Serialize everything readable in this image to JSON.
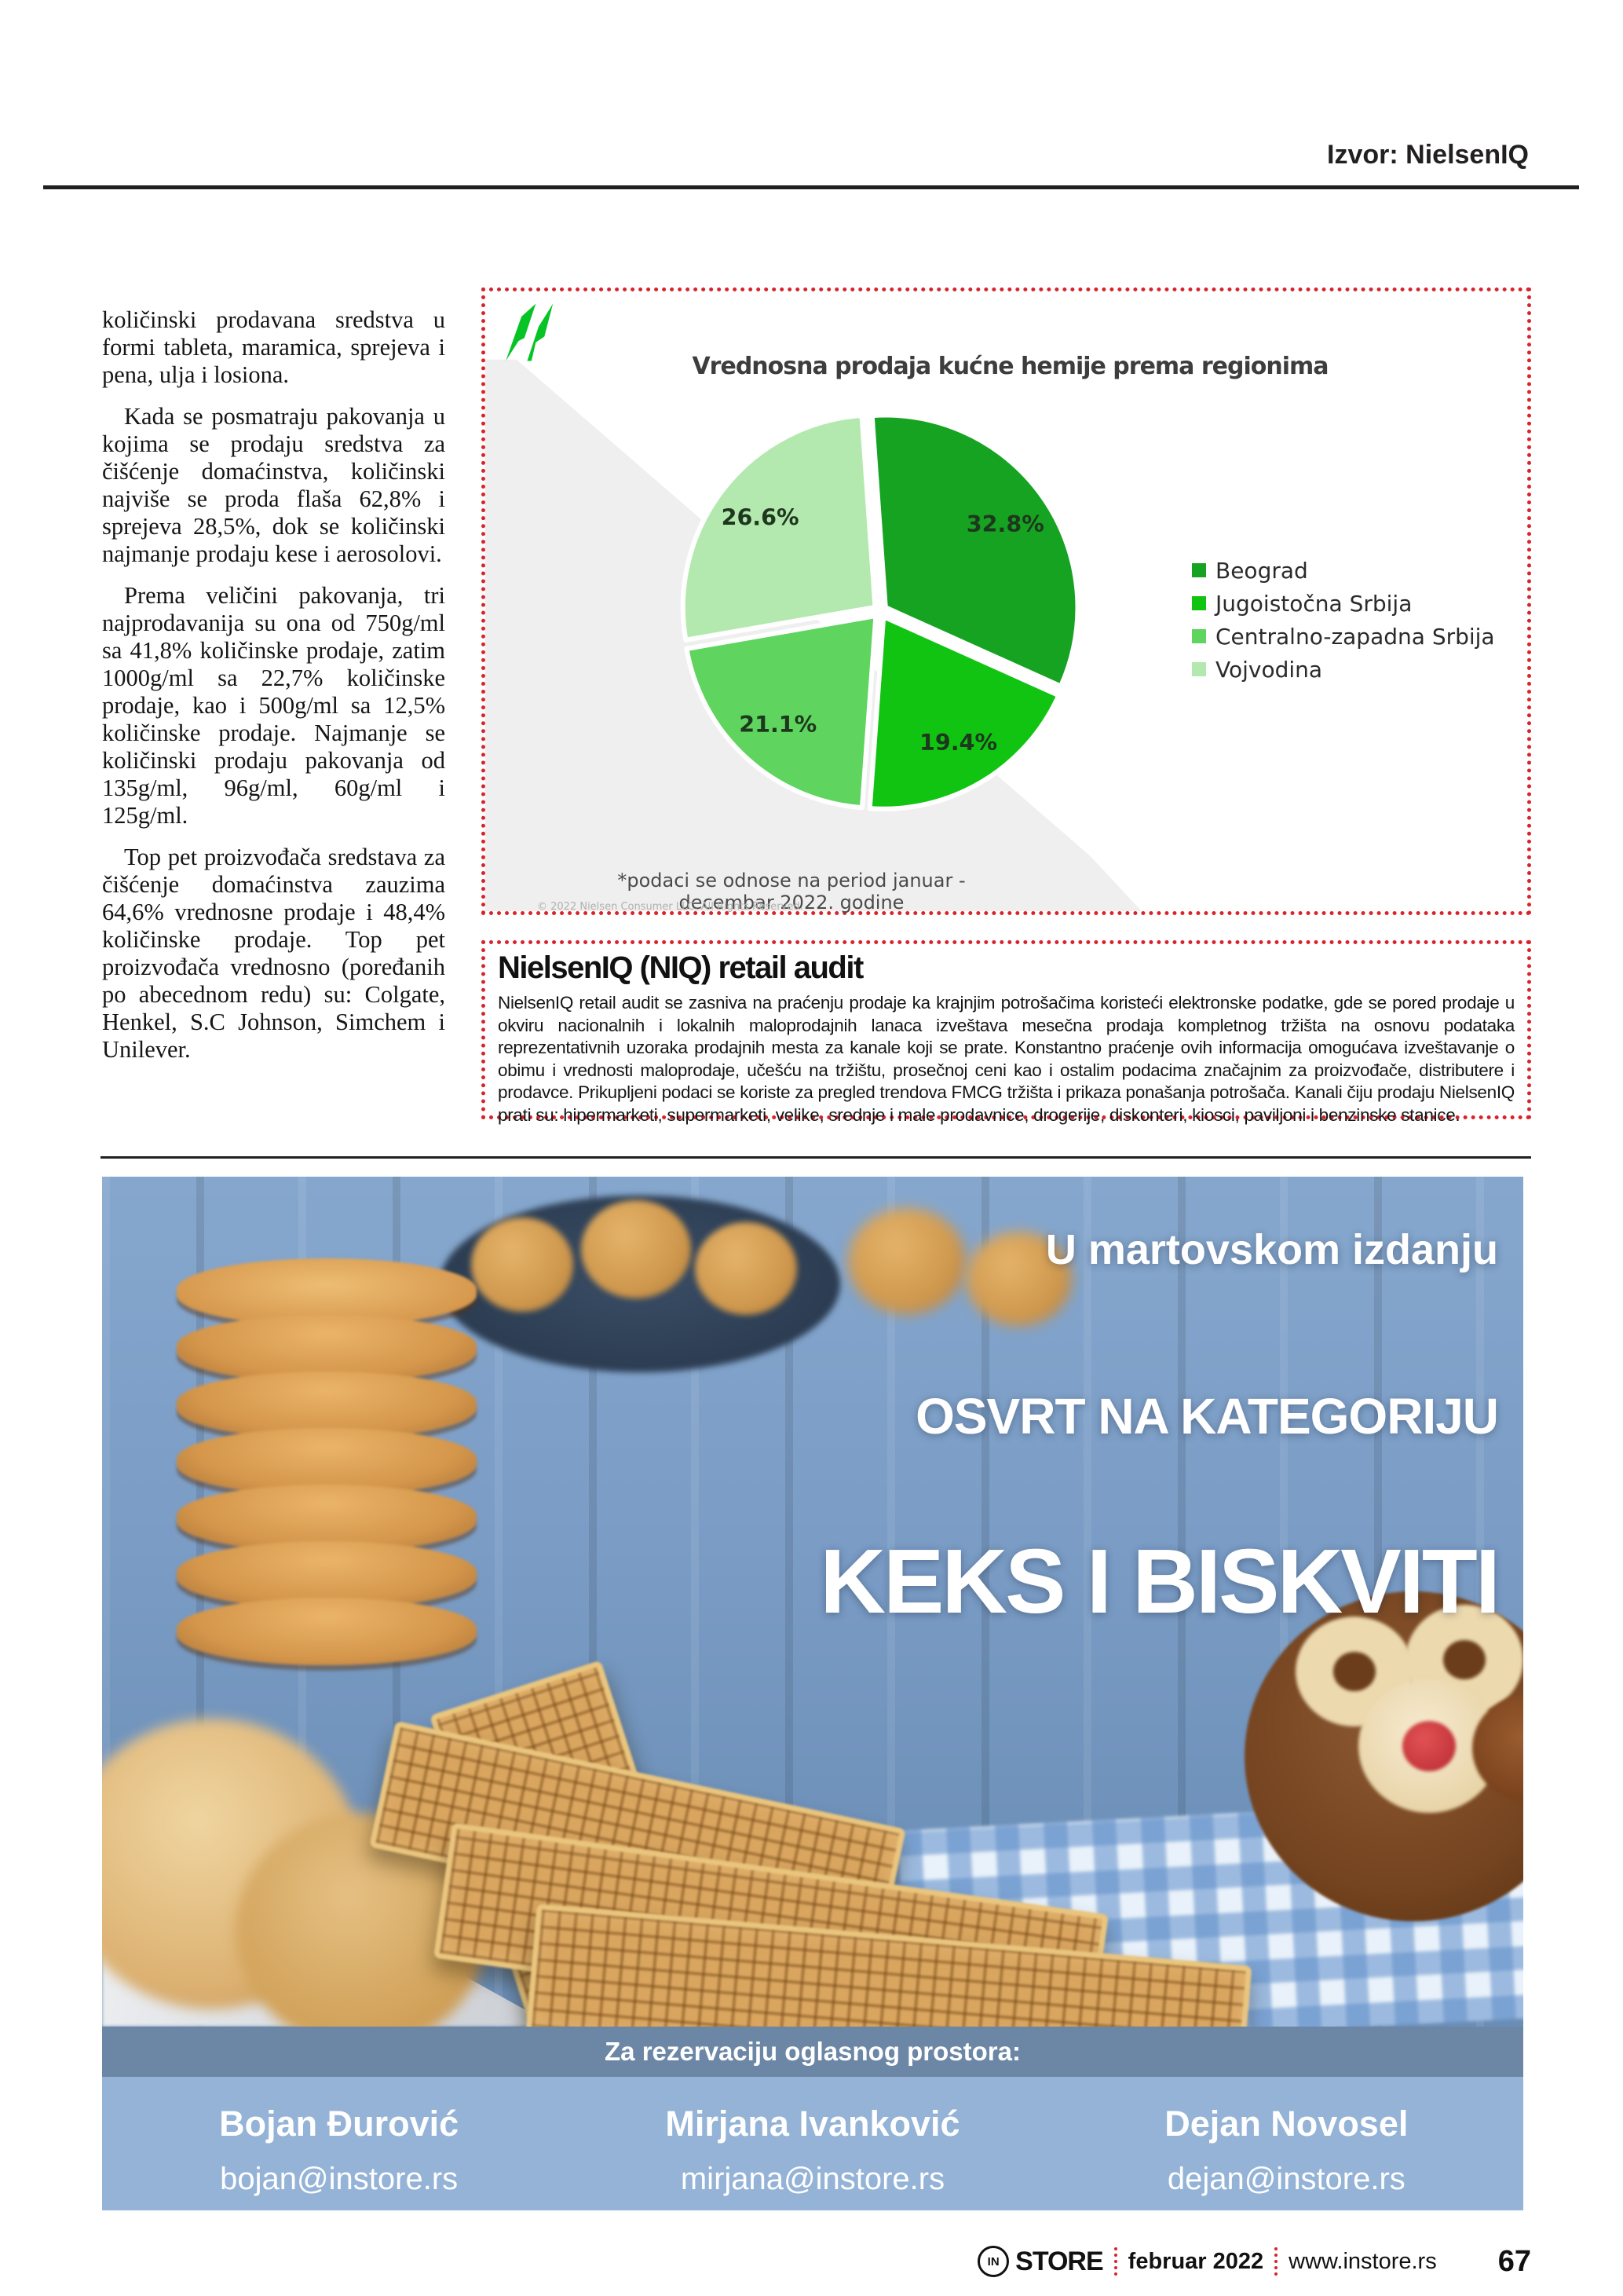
{
  "header": {
    "source_label": "Izvor: NielsenIQ"
  },
  "colors": {
    "accent_red": "#d8232a",
    "bar_dark": "#6c87a5",
    "bar_light": "#94b3d6",
    "logo_green": "#06c426"
  },
  "left_column": {
    "paragraphs": [
      "količinski prodavana sredstva u formi tableta, maramica, sprejeva i pena, ulja i losiona.",
      "Kada se posmatraju pakovanja u kojima se prodaju sredstva za čišćenje domaćinstva, količinski najviše se proda flaša 62,8% i sprejeva 28,5%, dok se količinski najmanje prodaju kese i aerosolovi.",
      "Prema veličini pakovanja, tri najprodavanija su ona od 750g/ml sa 41,8% količinske prodaje, zatim 1000g/ml sa 22,7% količinske prodaje, kao i 500g/ml sa 12,5% količinske prodaje. Najmanje se količinski prodaju pakovanja od 135g/ml, 96g/ml, 60g/ml i 125g/ml.",
      "Top pet proizvođača sredstava za čišćenje domaćinstva zauzima 64,6% vrednosne prodaje i 48,4% količinske prodaje. Top pet proizvođača vrednosno (poređanih po abecednom redu) su: Colgate, Henkel, S.C Johnson, Simchem i Unilever."
    ]
  },
  "chart": {
    "footnote": "*podaci se odnose na period januar - decembar 2022. godine",
    "copyright": "© 2022 Nielsen Consumer LLC. All Rights Reserved."
  },
  "chart_data": {
    "type": "pie",
    "title": "Vrednosna prodaja kućne hemije prema regionima",
    "categories": [
      "Beograd",
      "Jugoistočna Srbija",
      "Centralno-zapadna Srbija",
      "Vojvodina"
    ],
    "values": [
      32.8,
      19.4,
      21.1,
      26.6
    ],
    "labels": [
      "32.8%",
      "19.4%",
      "21.1%",
      "26.6%"
    ],
    "unit": "%",
    "colors": [
      "#17a322",
      "#12c412",
      "#5fd45f",
      "#b3e9ae"
    ],
    "legend_position": "right",
    "rotation_deg": -4
  },
  "niq_box": {
    "heading": "NielsenIQ (NIQ) retail audit",
    "body": "NielsenIQ retail audit se zasniva na praćenju prodaje ka krajnjim potrošačima koristeći elektronske podatke, gde se pored prodaje u okviru nacionalnih i lokalnih maloprodajnih lanaca izveštava mesečna prodaja kompletnog tržišta na osnovu podataka reprezentativnih uzoraka prodajnih mesta za kanale koji se prate. Konstantno praćenje ovih informacija omogućava izveštavanje o obimu i vrednosti maloprodaje, učešću na tržištu, prosečnoj ceni kao i ostalim podacima značajnim za proizvođače, distributere i prodavce. Prikupljeni podaci se koriste za pregled trendova FMCG tržišta i prikaza ponašanja potrošača. Kanali čiju prodaju NielsenIQ prati su: hipermarketi, supermarketi, velike, srednje i male prodavnice, drogerije, diskonteri, kiosci, paviljoni i benzinske stanice."
  },
  "promo": {
    "line1": "U martovskom izdanju",
    "line2": "OSVRT NA KATEGORIJU",
    "line3": "KEKS I BISKVITI"
  },
  "reservation": {
    "heading": "Za rezervaciju oglasnog prostora:",
    "contacts": [
      {
        "name": "Bojan Đurović",
        "email": "bojan@instore.rs"
      },
      {
        "name": "Mirjana Ivanković",
        "email": "mirjana@instore.rs"
      },
      {
        "name": "Dejan Novosel",
        "email": "dejan@instore.rs"
      }
    ]
  },
  "footer": {
    "logo_monogram": "IN",
    "brand": "STORE",
    "date": "februar 2022",
    "site": "www.instore.rs",
    "page": "67"
  }
}
